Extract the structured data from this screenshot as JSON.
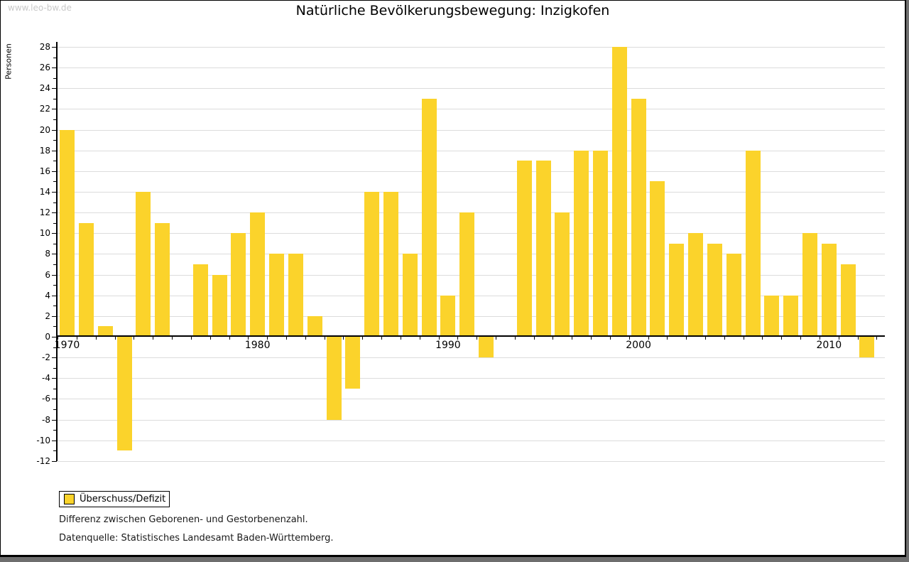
{
  "watermark": "www.leo-bw.de",
  "title": "Natürliche Bevölkerungsbewegung: Inzigkofen",
  "legend": {
    "label": "Überschuss/Defizit"
  },
  "notes": {
    "line1": "Differenz zwischen Geborenen- und Gestorbenenzahl.",
    "line2": "Datenquelle: Statistisches Landesamt Baden-Württemberg."
  },
  "colors": {
    "bar": "#fbd32b",
    "grid": "#dcdcdc",
    "axis": "#000000",
    "watermark": "#c9c9c9",
    "frame_shadow": "#6e6e6e"
  },
  "chart_data": {
    "type": "bar",
    "title": "Natürliche Bevölkerungsbewegung: Inzigkofen",
    "xlabel": "",
    "ylabel": "Personen",
    "series_name": "Überschuss/Defizit",
    "categories": [
      1970,
      1971,
      1972,
      1973,
      1974,
      1975,
      1976,
      1977,
      1978,
      1979,
      1980,
      1981,
      1982,
      1983,
      1984,
      1985,
      1986,
      1987,
      1988,
      1989,
      1990,
      1991,
      1992,
      1993,
      1994,
      1995,
      1996,
      1997,
      1998,
      1999,
      2000,
      2001,
      2002,
      2003,
      2004,
      2005,
      2006,
      2007,
      2008,
      2009,
      2010,
      2011,
      2012
    ],
    "values": [
      20,
      11,
      1,
      -11,
      14,
      11,
      0,
      7,
      6,
      10,
      12,
      8,
      8,
      2,
      -8,
      -5,
      14,
      14,
      8,
      23,
      4,
      12,
      -2,
      0,
      17,
      17,
      12,
      18,
      18,
      28,
      23,
      15,
      9,
      10,
      9,
      8,
      18,
      4,
      4,
      10,
      9,
      7,
      -2
    ],
    "ylim": [
      -12,
      28
    ],
    "ytick_step": 2,
    "xticks_labeled": [
      1970,
      1980,
      1990,
      2000,
      2010
    ],
    "grid": true,
    "legend_position": "bottom-left"
  }
}
